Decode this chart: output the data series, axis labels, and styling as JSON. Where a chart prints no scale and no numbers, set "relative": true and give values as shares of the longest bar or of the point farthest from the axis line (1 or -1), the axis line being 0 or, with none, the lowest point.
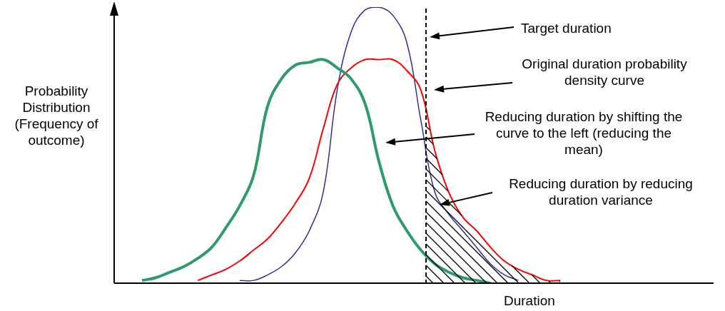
{
  "chart_data": {
    "type": "line",
    "relative": true,
    "xlabel": "Duration",
    "ylabel": "Probability Distribution (Frequency of outcome)",
    "categories": [
      null,
      null,
      null,
      null,
      null,
      null,
      null,
      null,
      null,
      null,
      null,
      null,
      null,
      null,
      null,
      null,
      null,
      null,
      null,
      null,
      null,
      null,
      null,
      null,
      null,
      null,
      null,
      null,
      null,
      null,
      null,
      null
    ],
    "series": [
      {
        "color": "#2e9b6a",
        "values": [
          null,
          0.01,
          0.02,
          0.04,
          0.06,
          0.09,
          0.13,
          0.2,
          0.28,
          0.39,
          0.64,
          0.74,
          0.79,
          0.8,
          0.81,
          0.78,
          0.74,
          0.65,
          0.44,
          0.28,
          0.19,
          0.12,
          0.07,
          0.04,
          0.02,
          0.01,
          0.0,
          null,
          null,
          null,
          null,
          null
        ]
      },
      {
        "color": "#ff0000",
        "values": [
          null,
          null,
          null,
          null,
          null,
          0.01,
          0.03,
          0.05,
          0.08,
          0.12,
          0.16,
          0.22,
          0.29,
          0.38,
          0.56,
          0.72,
          0.78,
          0.81,
          0.81,
          0.81,
          0.77,
          0.7,
          0.48,
          0.33,
          0.24,
          0.19,
          0.13,
          0.08,
          0.05,
          0.03,
          0.01,
          0.01
        ]
      },
      {
        "color": "#2e2e99",
        "values": [
          null,
          null,
          null,
          null,
          null,
          null,
          null,
          null,
          0.01,
          0.01,
          0.03,
          0.06,
          0.11,
          0.19,
          0.33,
          0.7,
          0.91,
          0.99,
          1.0,
          0.97,
          0.87,
          0.59,
          0.33,
          0.25,
          0.19,
          0.13,
          0.07,
          0.03,
          0.01,
          null,
          null,
          null
        ]
      }
    ],
    "annotations": [
      "Target duration",
      "Original duration probability density curve",
      "Reducing duration by shifting the curve to the left (reducing the mean)",
      "Reducing duration by reducing duration variance"
    ],
    "marker": "none",
    "line_style": "solid",
    "legend": false
  }
}
